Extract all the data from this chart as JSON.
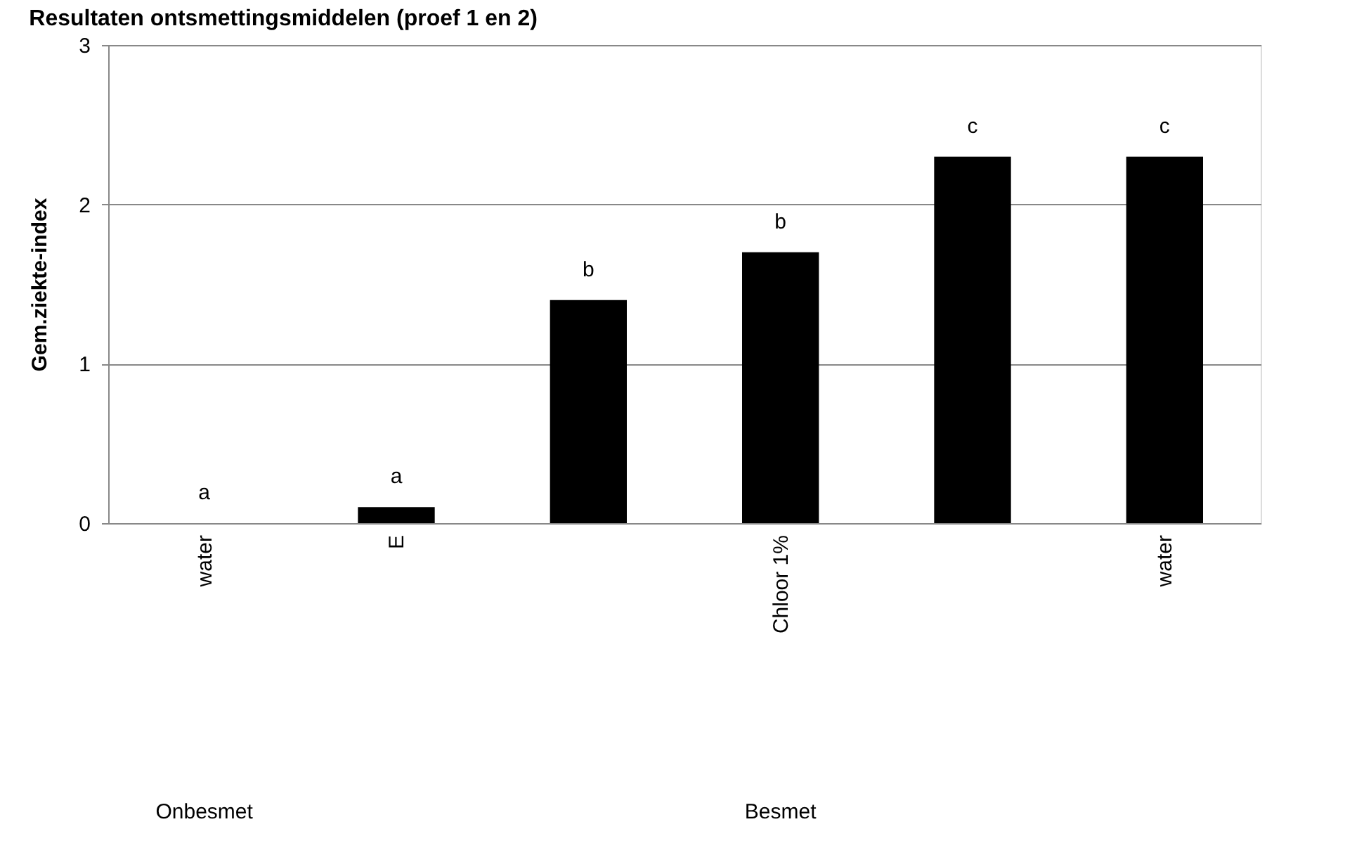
{
  "chart_data": {
    "type": "bar",
    "title": "Resultaten ontsmettingsmiddelen (proef 1 en 2)",
    "ylabel": "Gem.ziekte-index",
    "categories": [
      "water",
      "E",
      null,
      "Chloor 1%",
      null,
      "water"
    ],
    "values": [
      0,
      0.1,
      1.4,
      1.7,
      2.3,
      2.3
    ],
    "value_labels": [
      "a",
      "a",
      "b",
      "b",
      "c",
      "c"
    ],
    "color": "#000000",
    "ylim": [
      0,
      3
    ],
    "yticks": [
      0,
      1,
      2,
      3
    ],
    "grid": "y",
    "annotations": [
      "Onbesmet",
      "Besmet"
    ]
  }
}
